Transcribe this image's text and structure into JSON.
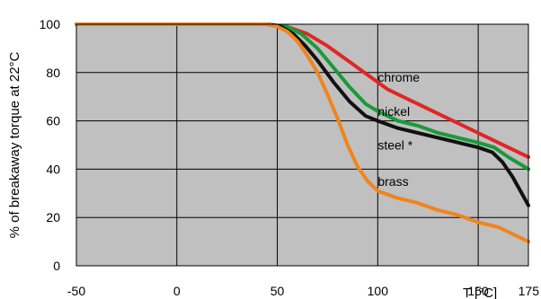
{
  "chart_data": {
    "type": "line",
    "ylabel": "% of breakaway torque at 22°C",
    "xlabel": "T [°C]",
    "xlim": [
      -50,
      175
    ],
    "ylim": [
      0,
      100
    ],
    "x_ticks": [
      -50,
      0,
      50,
      100,
      150,
      175
    ],
    "y_ticks": [
      0,
      20,
      40,
      60,
      80,
      100
    ],
    "grid": true,
    "plot_background": "#c0c0c0",
    "series": [
      {
        "name": "chrome",
        "color": "#e02626",
        "points": [
          [
            -50,
            100
          ],
          [
            45,
            100
          ],
          [
            55,
            99
          ],
          [
            65,
            96
          ],
          [
            75,
            91
          ],
          [
            85,
            85
          ],
          [
            95,
            79
          ],
          [
            105,
            73
          ],
          [
            115,
            69
          ],
          [
            125,
            65
          ],
          [
            135,
            61
          ],
          [
            145,
            57
          ],
          [
            155,
            53
          ],
          [
            165,
            49
          ],
          [
            175,
            45
          ]
        ]
      },
      {
        "name": "nickel",
        "color": "#1a9a3a",
        "points": [
          [
            -50,
            100
          ],
          [
            45,
            100
          ],
          [
            55,
            99
          ],
          [
            62,
            96
          ],
          [
            70,
            90
          ],
          [
            78,
            82
          ],
          [
            86,
            74
          ],
          [
            94,
            67
          ],
          [
            100,
            64
          ],
          [
            110,
            60
          ],
          [
            120,
            58
          ],
          [
            130,
            55
          ],
          [
            140,
            53
          ],
          [
            150,
            51
          ],
          [
            158,
            49
          ],
          [
            165,
            45
          ],
          [
            175,
            40
          ]
        ]
      },
      {
        "name": "steel *",
        "color": "#111111",
        "points": [
          [
            -50,
            100
          ],
          [
            45,
            100
          ],
          [
            52,
            99
          ],
          [
            58,
            96
          ],
          [
            64,
            91
          ],
          [
            70,
            85
          ],
          [
            78,
            76
          ],
          [
            86,
            68
          ],
          [
            94,
            62
          ],
          [
            100,
            60
          ],
          [
            110,
            57
          ],
          [
            120,
            55
          ],
          [
            130,
            53
          ],
          [
            140,
            51
          ],
          [
            150,
            49
          ],
          [
            157,
            47
          ],
          [
            162,
            43
          ],
          [
            167,
            37
          ],
          [
            171,
            31
          ],
          [
            175,
            25
          ]
        ]
      },
      {
        "name": "brass",
        "color": "#f0841e",
        "points": [
          [
            -50,
            100
          ],
          [
            45,
            100
          ],
          [
            50,
            99
          ],
          [
            55,
            97
          ],
          [
            60,
            93
          ],
          [
            65,
            87
          ],
          [
            70,
            80
          ],
          [
            75,
            71
          ],
          [
            80,
            61
          ],
          [
            85,
            50
          ],
          [
            90,
            41
          ],
          [
            95,
            35
          ],
          [
            100,
            31
          ],
          [
            110,
            28
          ],
          [
            120,
            26
          ],
          [
            130,
            23
          ],
          [
            140,
            21
          ],
          [
            150,
            18
          ],
          [
            160,
            16
          ],
          [
            175,
            10
          ]
        ]
      }
    ],
    "series_label_positions": [
      {
        "name": "chrome",
        "x": 100,
        "y": 78
      },
      {
        "name": "nickel",
        "x": 100,
        "y": 64
      },
      {
        "name": "steel *",
        "x": 100,
        "y": 50
      },
      {
        "name": "brass",
        "x": 100,
        "y": 35
      }
    ]
  }
}
